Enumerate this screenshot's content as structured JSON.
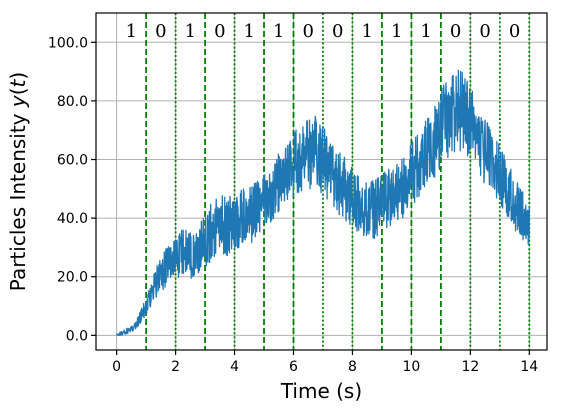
{
  "chart_data": {
    "type": "line",
    "xlabel": "Time (s)",
    "ylabel_prefix": "Particles Intensity ",
    "ylabel_var": "y",
    "ylabel_open": "(",
    "ylabel_arg": "t",
    "ylabel_close": ")",
    "xlim": [
      -0.7,
      14.6
    ],
    "ylim": [
      -5,
      110
    ],
    "xticks": [
      0,
      2,
      4,
      6,
      8,
      10,
      12,
      14
    ],
    "xtick_labels": [
      "0",
      "2",
      "4",
      "6",
      "8",
      "10",
      "12",
      "14"
    ],
    "yticks": [
      0,
      20,
      40,
      60,
      80,
      100
    ],
    "ytick_labels": [
      "0.0",
      "20.0",
      "40.0",
      "60.0",
      "80.0",
      "100.0"
    ],
    "grid": true,
    "line_color": "#1f77b4",
    "divider_color": "#008000",
    "bits": [
      "1",
      "0",
      "1",
      "0",
      "1",
      "1",
      "0",
      "0",
      "1",
      "1",
      "1",
      "0",
      "0",
      "0"
    ],
    "bit_interval_s": 1,
    "dividers": [
      {
        "x": 1,
        "style": "dashed"
      },
      {
        "x": 2,
        "style": "dotted"
      },
      {
        "x": 3,
        "style": "dashed"
      },
      {
        "x": 4,
        "style": "dotted"
      },
      {
        "x": 5,
        "style": "dashed"
      },
      {
        "x": 6,
        "style": "dashed"
      },
      {
        "x": 7,
        "style": "dotted"
      },
      {
        "x": 8,
        "style": "dotted"
      },
      {
        "x": 9,
        "style": "dashed"
      },
      {
        "x": 10,
        "style": "dashed"
      },
      {
        "x": 11,
        "style": "dashed"
      },
      {
        "x": 12,
        "style": "dotted"
      },
      {
        "x": 13,
        "style": "dotted"
      },
      {
        "x": 14,
        "style": "dotted"
      }
    ],
    "series": [
      {
        "x": [
          0,
          0.25,
          0.5,
          0.75,
          1,
          1.25,
          1.5,
          1.75,
          2,
          2.25,
          2.5,
          2.75,
          3,
          3.25,
          3.5,
          3.75,
          4,
          4.25,
          4.5,
          4.75,
          5,
          5.25,
          5.5,
          5.75,
          6,
          6.25,
          6.5,
          6.75,
          7,
          7.25,
          7.5,
          7.75,
          8,
          8.25,
          8.5,
          8.75,
          9,
          9.25,
          9.5,
          9.75,
          10,
          10.25,
          10.5,
          10.75,
          11,
          11.25,
          11.5,
          11.75,
          12,
          12.25,
          12.5,
          12.75,
          13,
          13.25,
          13.5,
          13.75,
          14
        ],
        "y": [
          0,
          1,
          2,
          5,
          10,
          16,
          21,
          24,
          27,
          29,
          27,
          29,
          32,
          36,
          38,
          37,
          38,
          40,
          41,
          43,
          45,
          49,
          52,
          55,
          58,
          61,
          62,
          63,
          60,
          55,
          52,
          50,
          47,
          44,
          42,
          43,
          45,
          47,
          49,
          51,
          55,
          58,
          62,
          66,
          70,
          74,
          77,
          76,
          72,
          67,
          63,
          59,
          55,
          50,
          45,
          41,
          38
        ],
        "amplitude": [
          0.5,
          1,
          1,
          2,
          3,
          5,
          6,
          7,
          8,
          8,
          8,
          8,
          9,
          10,
          10,
          10,
          10,
          10,
          10,
          10,
          10,
          10,
          10,
          10,
          11,
          12,
          12,
          13,
          12,
          11,
          11,
          11,
          10,
          10,
          10,
          10,
          10,
          10,
          10,
          11,
          11,
          12,
          12,
          13,
          14,
          14,
          14,
          14,
          13,
          12,
          12,
          11,
          10,
          10,
          9,
          9,
          9
        ]
      }
    ]
  }
}
